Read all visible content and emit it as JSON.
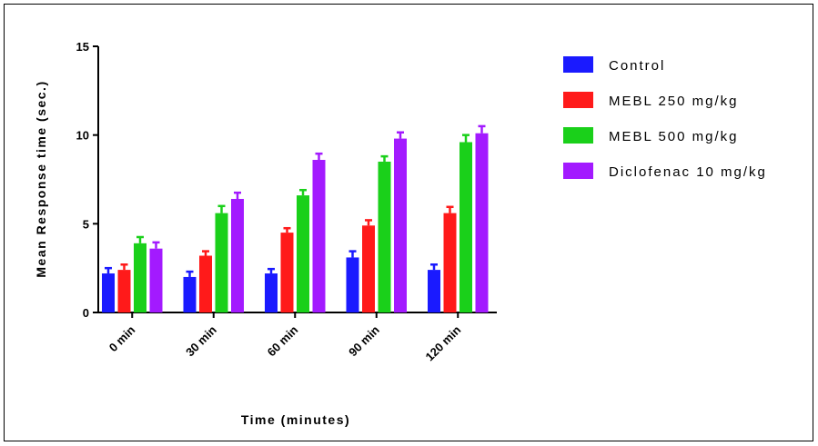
{
  "chart_data": {
    "type": "bar",
    "title": "",
    "xlabel": "Time (minutes)",
    "ylabel": "Mean Response time (sec.)",
    "ylim": [
      0,
      15
    ],
    "yticks": [
      0,
      5,
      10,
      15
    ],
    "categories": [
      "0 min",
      "30 min",
      "60 min",
      "90 min",
      "120 min"
    ],
    "error_bars": true,
    "legend_position": "right",
    "series": [
      {
        "name": "Control",
        "color": "#1a1aff",
        "values": [
          2.2,
          2.0,
          2.2,
          3.1,
          2.4
        ],
        "errors": [
          0.3,
          0.3,
          0.25,
          0.35,
          0.3
        ]
      },
      {
        "name": "MEBL 250 mg/kg",
        "color": "#ff1a1a",
        "values": [
          2.4,
          3.2,
          4.5,
          4.9,
          5.6
        ],
        "errors": [
          0.3,
          0.25,
          0.25,
          0.3,
          0.35
        ]
      },
      {
        "name": "MEBL 500 mg/kg",
        "color": "#1ad01a",
        "values": [
          3.9,
          5.6,
          6.6,
          8.5,
          9.6
        ],
        "errors": [
          0.35,
          0.4,
          0.3,
          0.3,
          0.4
        ]
      },
      {
        "name": "Diclofenac 10 mg/kg",
        "color": "#a31aff",
        "values": [
          3.6,
          6.4,
          8.6,
          9.8,
          10.1
        ],
        "errors": [
          0.35,
          0.35,
          0.35,
          0.35,
          0.4
        ]
      }
    ]
  }
}
